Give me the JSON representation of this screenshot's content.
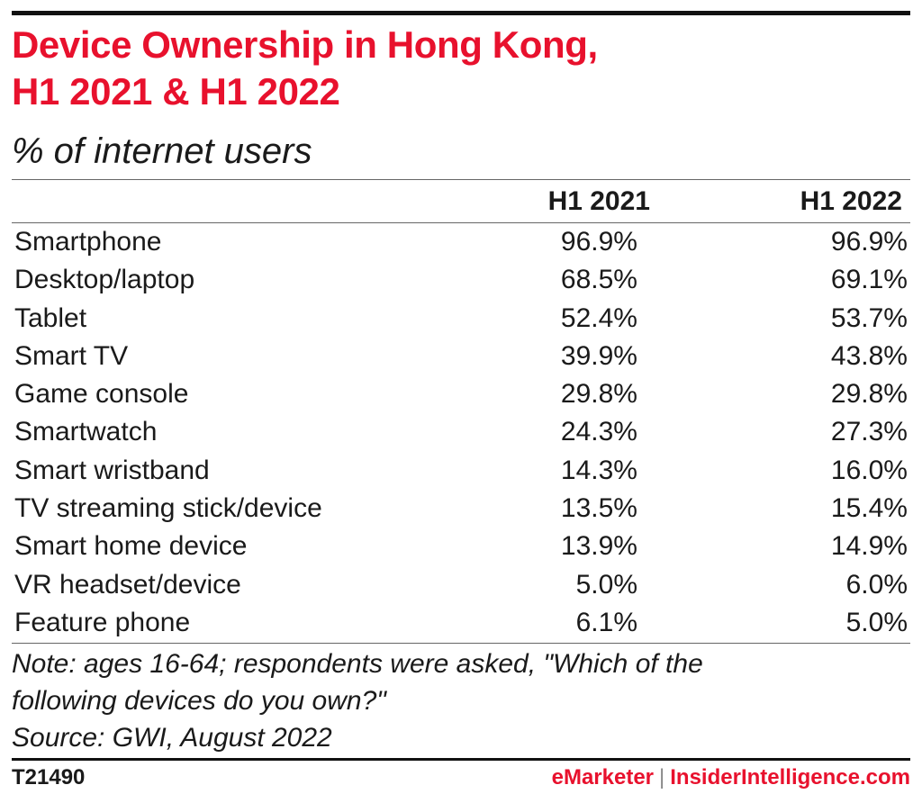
{
  "header": {
    "title_line1": "Device Ownership in Hong Kong,",
    "title_line2": "H1 2021 & H1 2022",
    "subtitle": "% of internet users"
  },
  "columns": [
    "H1 2021",
    "H1 2022"
  ],
  "chart_data": {
    "type": "table",
    "title": "Device Ownership in Hong Kong, H1 2021 & H1 2022",
    "subtitle": "% of internet users",
    "columns": [
      "H1 2021",
      "H1 2022"
    ],
    "rows": [
      {
        "label": "Smartphone",
        "h1_2021": "96.9%",
        "h1_2022": "96.9%"
      },
      {
        "label": "Desktop/laptop",
        "h1_2021": "68.5%",
        "h1_2022": "69.1%"
      },
      {
        "label": "Tablet",
        "h1_2021": "52.4%",
        "h1_2022": "53.7%"
      },
      {
        "label": "Smart TV",
        "h1_2021": "39.9%",
        "h1_2022": "43.8%"
      },
      {
        "label": "Game console",
        "h1_2021": "29.8%",
        "h1_2022": "29.8%"
      },
      {
        "label": "Smartwatch",
        "h1_2021": "24.3%",
        "h1_2022": "27.3%"
      },
      {
        "label": "Smart wristband",
        "h1_2021": "14.3%",
        "h1_2022": "16.0%"
      },
      {
        "label": "TV streaming stick/device",
        "h1_2021": "13.5%",
        "h1_2022": "15.4%"
      },
      {
        "label": "Smart home device",
        "h1_2021": "13.9%",
        "h1_2022": "14.9%"
      },
      {
        "label": "VR headset/device",
        "h1_2021": "5.0%",
        "h1_2022": "6.0%"
      },
      {
        "label": "Feature phone",
        "h1_2021": "6.1%",
        "h1_2022": "5.0%"
      }
    ]
  },
  "notes": {
    "note_line1": "Note: ages 16-64; respondents were asked, \"Which of the",
    "note_line2": "following devices do you own?\"",
    "source": "Source: GWI, August 2022"
  },
  "footer": {
    "chart_id": "T21490",
    "brand_left": "eMarketer",
    "separator": "|",
    "brand_right": "InsiderIntelligence.com"
  },
  "colors": {
    "accent_red": "#e8112d",
    "text": "#1a1a1a"
  }
}
